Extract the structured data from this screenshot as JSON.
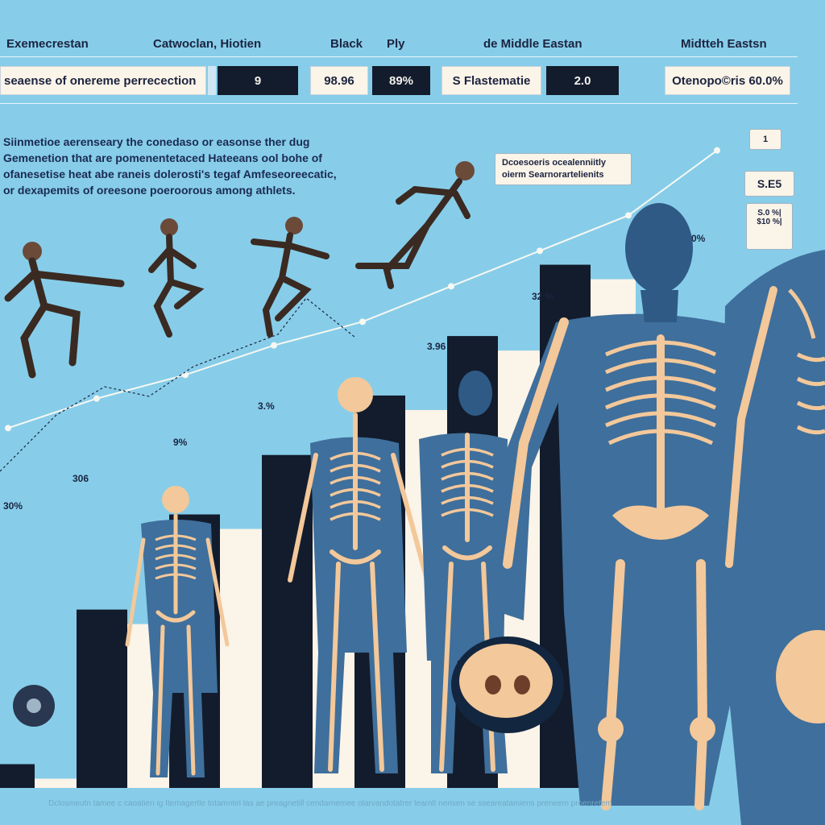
{
  "header": {
    "columns": [
      "Exemecrestan",
      "Catwoclan, Hiotien",
      "Black",
      "Ply",
      "de Middle Eastan",
      "Midtteh Eastsn"
    ],
    "cells": [
      "seaense of onereme perrecection",
      "9",
      "98.96",
      "89%",
      "S Flastematie",
      "2.0",
      "Otenopo©ris 60.0%"
    ]
  },
  "intro_text": [
    "Siinmetioe aerenseary the conedaso or easonse ther dug",
    "Gemenetion  that are pomenentetaced Hateeans ool bohe of",
    "ofanesetise heat abe raneis dolerosti's tegaf Amfeseoreecatic,",
    "or dexapemits of oreesone poeroorous among athlets."
  ],
  "callouts": {
    "note": "Dcoesoeris ocealenniitly oierm Searnorartelienits",
    "value_a": "S.E5",
    "value_b": "S.0 %|",
    "value_b2": "$10 %|",
    "corner": "1"
  },
  "footer_text": "Dclosmeutn tamee c caoatien ig Itemagertle totamntel las ae preagnetill cendarnemee olarvandotatrer learnlt nerisen se sseareatamiens preneem proenretem",
  "colors": {
    "background": "#87cde9",
    "bar_dark": "#131c2c",
    "bar_light": "#fbf4e8",
    "line": "#f7f8f2",
    "body_blue": "#3f6f9c",
    "bone": "#f3c89a"
  },
  "chart_data": {
    "type": "bar",
    "title": "",
    "xlabel": "",
    "ylabel": "",
    "bar_labels": [
      "30%",
      "306",
      "9%",
      "3.%",
      "3.96",
      "32 %",
      "0%"
    ],
    "series": [
      {
        "values": [
          4,
          30,
          46,
          56,
          66,
          76,
          88
        ]
      }
    ],
    "line_points_y": [
      48,
      53,
      57,
      62,
      66,
      72,
      78,
      84,
      95
    ],
    "ylim": [
      0,
      100
    ]
  }
}
